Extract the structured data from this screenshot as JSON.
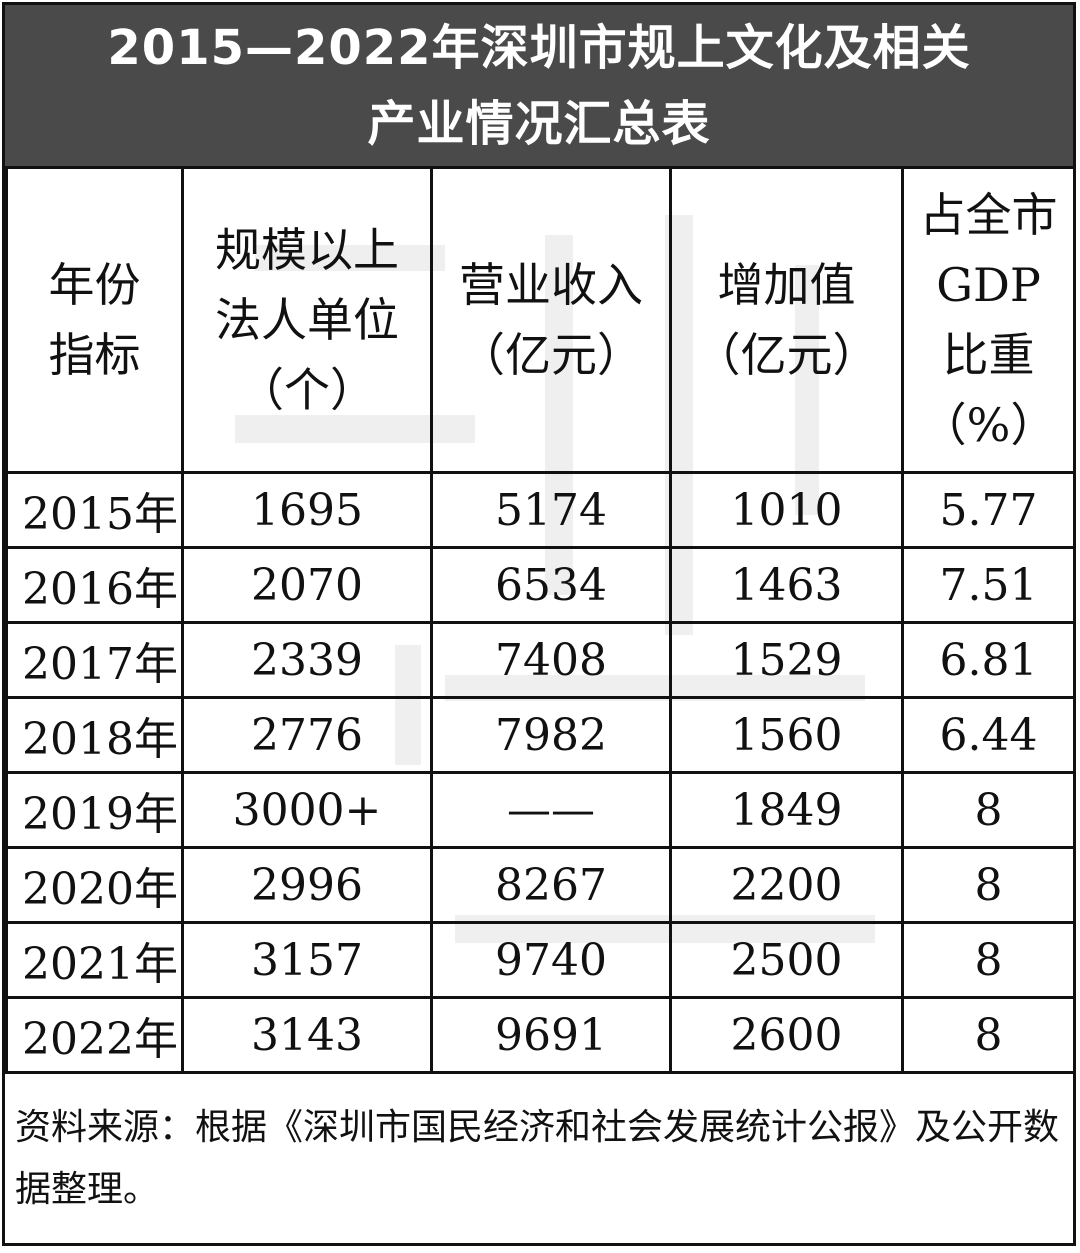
{
  "title": {
    "line1": "2015—2022年深圳市规上文化及相关",
    "line2": "产业情况汇总表"
  },
  "table": {
    "headers": [
      [
        "年份",
        "指标"
      ],
      [
        "规模以上",
        "法人单位",
        "（个）"
      ],
      [
        "营业收入",
        "（亿元）"
      ],
      [
        "增加值",
        "（亿元）"
      ],
      [
        "占全市",
        "GDP",
        "比重",
        "（%）"
      ]
    ],
    "rows": [
      [
        "2015年",
        "1695",
        "5174",
        "1010",
        "5.77"
      ],
      [
        "2016年",
        "2070",
        "6534",
        "1463",
        "7.51"
      ],
      [
        "2017年",
        "2339",
        "7408",
        "1529",
        "6.81"
      ],
      [
        "2018年",
        "2776",
        "7982",
        "1560",
        "6.44"
      ],
      [
        "2019年",
        "3000+",
        "——",
        "1849",
        "8"
      ],
      [
        "2020年",
        "2996",
        "8267",
        "2200",
        "8"
      ],
      [
        "2021年",
        "3157",
        "9740",
        "2500",
        "8"
      ],
      [
        "2022年",
        "3143",
        "9691",
        "2600",
        "8"
      ]
    ]
  },
  "note": "资料来源：根据《深圳市国民经济和社会发展统计公报》及公开数据整理。",
  "colors": {
    "title_bg": "#4a4a4a",
    "title_text": "#ffffff",
    "border": "#111111"
  }
}
